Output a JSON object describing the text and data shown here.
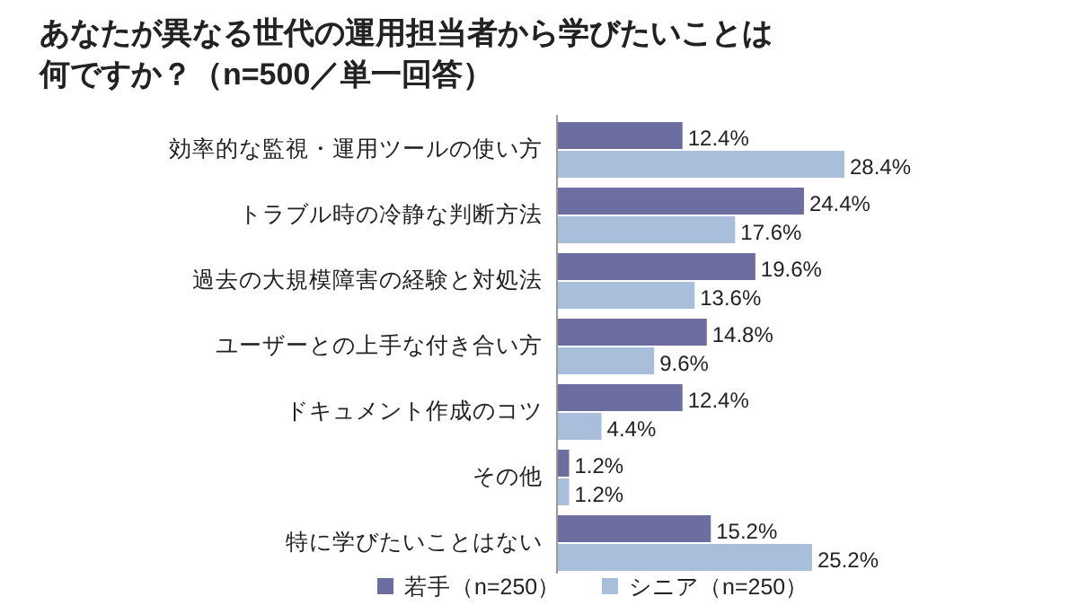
{
  "chart_data": {
    "type": "bar",
    "orientation": "horizontal",
    "title": "あなたが異なる世代の運用担当者から学びたいことは何ですか？（n=500／単一回答）",
    "categories": [
      "効率的な監視・運用ツールの使い方",
      "トラブル時の冷静な判断方法",
      "過去の大規模障害の経験と対処法",
      "ユーザーとの上手な付き合い方",
      "ドキュメント作成のコツ",
      "その他",
      "特に学びたいことはない"
    ],
    "series": [
      {
        "name": "若手（n=250）",
        "color": "#6b6e9e",
        "values": [
          12.4,
          24.4,
          19.6,
          14.8,
          12.4,
          1.2,
          15.2
        ],
        "value_labels": [
          "12.4%",
          "24.4%",
          "19.6%",
          "14.8%",
          "12.4%",
          "1.2%",
          "15.2%"
        ]
      },
      {
        "name": "シニア（n=250）",
        "color": "#a8bedb",
        "values": [
          28.4,
          17.6,
          13.6,
          9.6,
          4.4,
          1.2,
          25.2
        ],
        "value_labels": [
          "28.4%",
          "17.6%",
          "13.6%",
          "9.6%",
          "4.4%",
          "1.2%",
          "25.2%"
        ]
      }
    ],
    "legend": "bottom"
  }
}
